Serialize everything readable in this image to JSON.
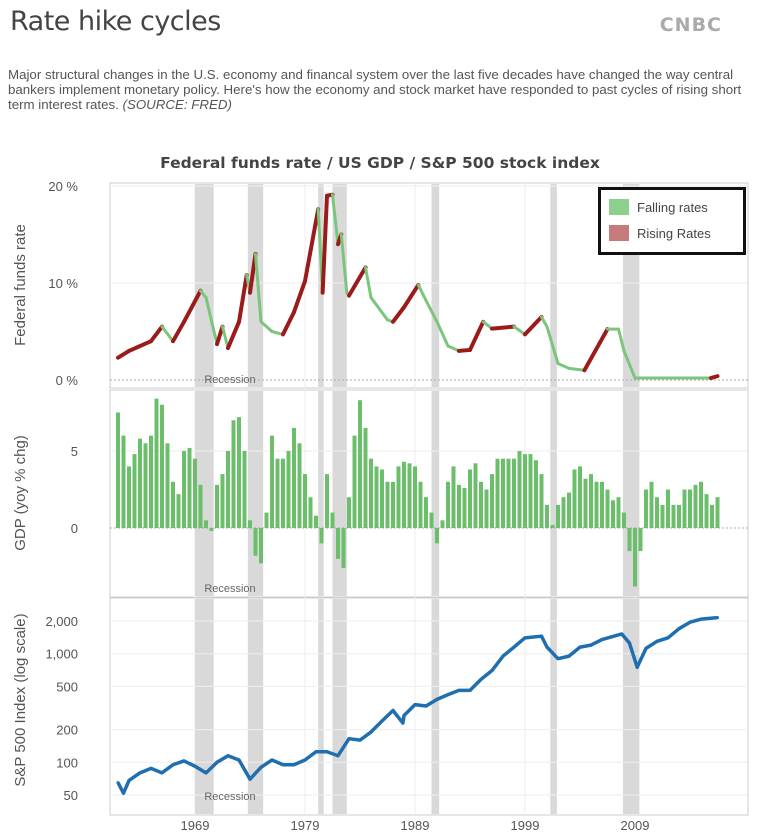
{
  "header": {
    "title": "Rate hike cycles",
    "logo": "CNBC",
    "description": "Major structural changes in the U.S. economy and financal system over the last five decades have changed the way central bankers implement monetary policy. Here's how the economy and stock market have responded to past cycles of rising short term interest rates.",
    "source": "(SOURCE: FRED)"
  },
  "colors": {
    "falling": "#7cc57c",
    "rising": "#9b1b1b",
    "gdp": "#6bbf6b",
    "sp500": "#1f6fb0",
    "recession": "#d9d9d9",
    "legend_falling": "#8dcf8d",
    "legend_rising": "#c57b7b"
  },
  "chart_data": [
    {
      "type": "line",
      "title": "Federal funds rate / US GDP / S&P 500 stock index",
      "ylabel": "Federal funds rate",
      "yticks": [
        "0 %",
        "10 %",
        "20 %"
      ],
      "ylim": [
        0,
        20
      ],
      "legend": {
        "position": "top-right",
        "items": [
          "Falling rates",
          "Rising Rates"
        ]
      },
      "recession_label": "Recession",
      "x": [
        1962,
        1963,
        1964,
        1965,
        1966,
        1967,
        1968,
        1969.5,
        1970,
        1971,
        1971.5,
        1972,
        1973,
        1973.7,
        1974,
        1974.5,
        1975,
        1976,
        1977,
        1978,
        1979,
        1980.2,
        1980.6,
        1981,
        1981.5,
        1982,
        1982.3,
        1982.8,
        1983,
        1984.5,
        1985,
        1986.5,
        1987,
        1988,
        1989.3,
        1990,
        1991,
        1992,
        1993,
        1994,
        1995.2,
        1996,
        1998,
        1999,
        2000.5,
        2001,
        2002,
        2003,
        2004.4,
        2006.5,
        2007.5,
        2008,
        2009,
        2015.9,
        2016.5
      ],
      "values": [
        2.3,
        3.0,
        3.5,
        4.0,
        5.5,
        4.0,
        6.0,
        9.2,
        8.5,
        3.7,
        5.5,
        3.3,
        6.0,
        10.8,
        9.0,
        13.0,
        6.0,
        5.0,
        4.7,
        7.0,
        10.2,
        17.6,
        9.0,
        19.0,
        19.1,
        14.0,
        15.0,
        9.0,
        8.7,
        11.6,
        8.5,
        6.2,
        6.0,
        7.5,
        9.8,
        8.2,
        6.0,
        3.5,
        3.0,
        3.1,
        6.0,
        5.3,
        5.5,
        4.7,
        6.5,
        5.5,
        1.7,
        1.2,
        1.0,
        5.25,
        5.25,
        3.0,
        0.2,
        0.2,
        0.4
      ]
    },
    {
      "type": "bar",
      "ylabel": "GDP (yoy % chg)",
      "yticks": [
        "0",
        "5"
      ],
      "ylim": [
        -4,
        9
      ],
      "recession_label": "Recession",
      "x_start": 1962,
      "x_step": 0.5,
      "values": [
        7.5,
        6.0,
        4.0,
        4.8,
        5.8,
        5.5,
        6.0,
        8.4,
        8.0,
        5.5,
        3.0,
        2.2,
        5.0,
        5.2,
        4.5,
        2.8,
        0.5,
        -0.2,
        2.8,
        3.5,
        5.0,
        7.0,
        7.2,
        5.0,
        0.5,
        -1.8,
        -2.3,
        1.0,
        6.0,
        4.5,
        4.5,
        5.0,
        6.5,
        5.5,
        3.5,
        2.0,
        0.8,
        -1.0,
        3.5,
        1.0,
        -2.0,
        -2.6,
        2.0,
        6.0,
        8.3,
        6.5,
        4.5,
        4.0,
        3.8,
        3.0,
        3.0,
        4.0,
        4.3,
        4.2,
        4.0,
        3.0,
        2.0,
        1.0,
        -1.0,
        0.5,
        3.0,
        4.0,
        2.8,
        2.6,
        3.8,
        4.2,
        3.0,
        2.5,
        3.5,
        4.5,
        4.5,
        4.5,
        4.5,
        5.0,
        4.8,
        4.8,
        4.4,
        3.5,
        1.5,
        0.2,
        1.5,
        2.0,
        2.3,
        3.8,
        4.0,
        3.2,
        3.5,
        3.0,
        3.0,
        2.5,
        1.8,
        2.0,
        1.0,
        -1.5,
        -3.8,
        -1.5,
        2.5,
        3.0,
        2.0,
        1.5,
        2.5,
        1.5,
        1.5,
        2.5,
        2.5,
        2.8,
        3.0,
        2.2,
        1.5,
        2.0
      ]
    },
    {
      "type": "line",
      "ylabel": "S&P 500 Index (log scale)",
      "yscale": "log",
      "yticks": [
        "50",
        "100",
        "200",
        "500",
        "1,000",
        "2,000"
      ],
      "ylim": [
        40,
        3500
      ],
      "recession_label": "Recession",
      "xticks": [
        "1969",
        "1979",
        "1989",
        "1999",
        "2009"
      ],
      "x": [
        1962,
        1962.5,
        1963,
        1964,
        1965,
        1966,
        1967,
        1968,
        1969,
        1970,
        1971,
        1972,
        1973,
        1974,
        1975,
        1976,
        1977,
        1978,
        1979,
        1980,
        1981,
        1982,
        1983,
        1984,
        1985,
        1986,
        1987,
        1987.9,
        1988,
        1989,
        1990,
        1991,
        1992,
        1993,
        1994,
        1995,
        1996,
        1997,
        1998,
        1999,
        2000.5,
        2001,
        2002,
        2003,
        2004,
        2005,
        2006,
        2007.8,
        2008.5,
        2009.2,
        2010,
        2011,
        2012,
        2013,
        2014,
        2015,
        2016.5
      ],
      "values": [
        65,
        52,
        68,
        80,
        88,
        80,
        95,
        103,
        92,
        80,
        100,
        115,
        105,
        70,
        90,
        105,
        95,
        95,
        105,
        125,
        125,
        115,
        165,
        160,
        190,
        240,
        300,
        230,
        270,
        340,
        330,
        380,
        420,
        460,
        460,
        580,
        700,
        950,
        1150,
        1400,
        1450,
        1150,
        900,
        950,
        1150,
        1200,
        1350,
        1520,
        1250,
        750,
        1120,
        1300,
        1400,
        1700,
        1950,
        2080,
        2150
      ]
    }
  ],
  "recessions": [
    [
      1969,
      1970.7
    ],
    [
      1973.8,
      1975.2
    ],
    [
      1980.2,
      1980.7
    ],
    [
      1981.5,
      1982.8
    ],
    [
      1990.5,
      1991.2
    ],
    [
      2001.3,
      2001.9
    ],
    [
      2007.9,
      2009.4
    ]
  ]
}
